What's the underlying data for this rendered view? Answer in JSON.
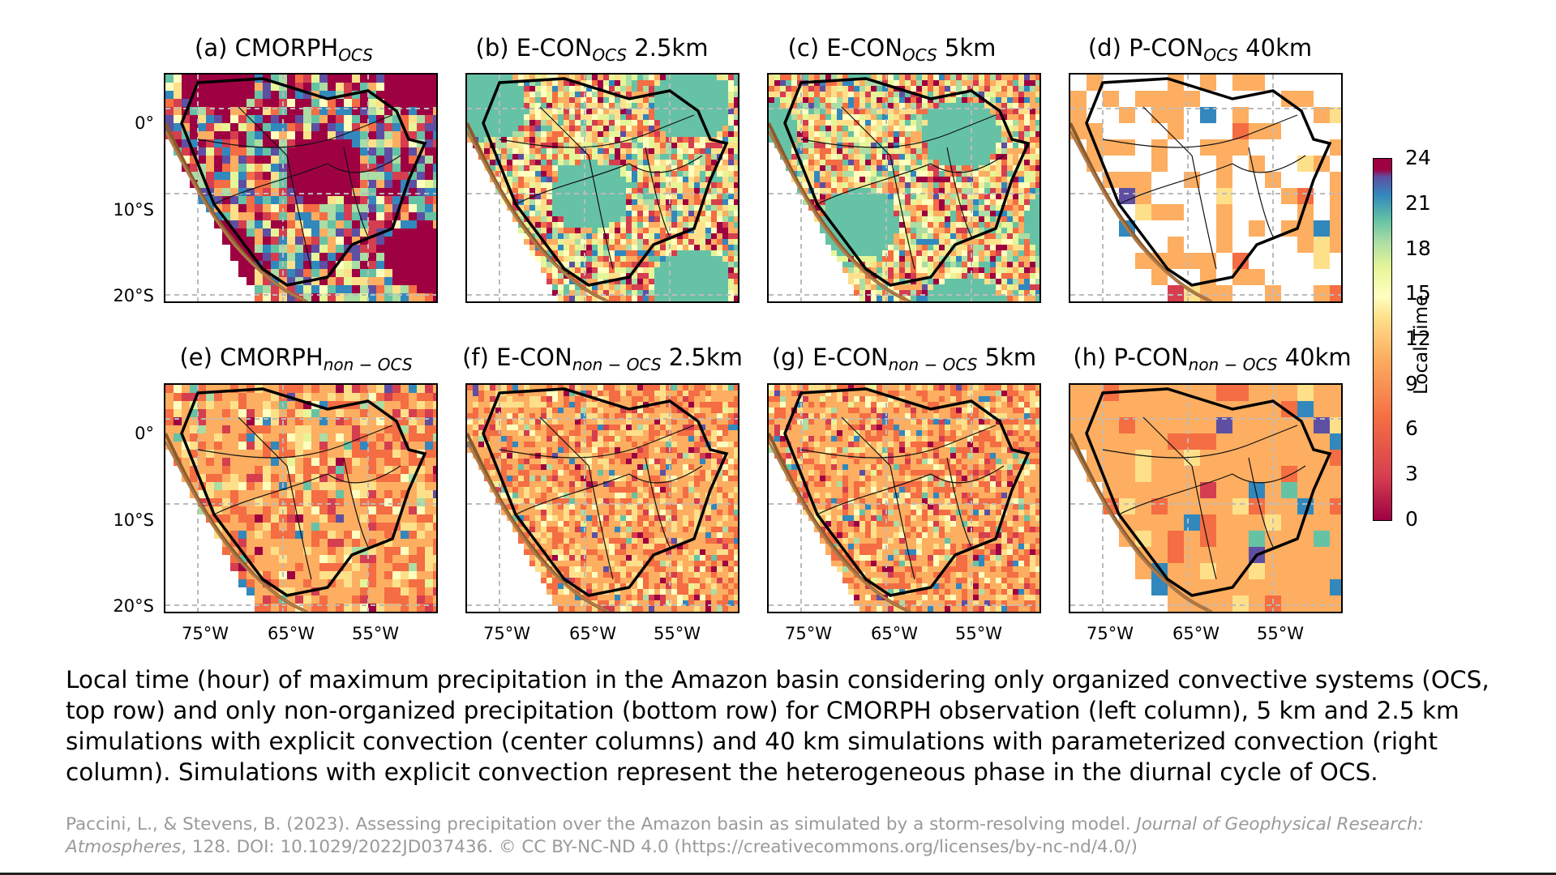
{
  "panels": [
    {
      "id": "a",
      "prefix": "(a) CMORPH",
      "sub": "OCS",
      "suffix": "",
      "scheme": "ocs-obs"
    },
    {
      "id": "b",
      "prefix": "(b) E-CON",
      "sub": "OCS",
      "suffix": " 2.5km",
      "scheme": "ocs-econ"
    },
    {
      "id": "c",
      "prefix": "(c) E-CON",
      "sub": "OCS",
      "suffix": " 5km",
      "scheme": "ocs-econ"
    },
    {
      "id": "d",
      "prefix": "(d) P-CON",
      "sub": "OCS",
      "suffix": " 40km",
      "scheme": "ocs-pcon"
    },
    {
      "id": "e",
      "prefix": "(e) CMORPH",
      "sub": "non − OCS",
      "suffix": "",
      "scheme": "non"
    },
    {
      "id": "f",
      "prefix": "(f) E-CON",
      "sub": "non − OCS",
      "suffix": " 2.5km",
      "scheme": "non"
    },
    {
      "id": "g",
      "prefix": "(g) E-CON",
      "sub": "non − OCS",
      "suffix": " 5km",
      "scheme": "non"
    },
    {
      "id": "h",
      "prefix": "(h) P-CON",
      "sub": "non − OCS",
      "suffix": " 40km",
      "scheme": "non-pcon"
    }
  ],
  "lat_labels": [
    "0°",
    "10°S",
    "20°S"
  ],
  "lon_labels": [
    "75°W",
    "65°W",
    "55°W"
  ],
  "colorbar": {
    "title": "Local Time",
    "ticks": [
      "24",
      "21",
      "18",
      "15",
      "12",
      "9",
      "6",
      "3",
      "0"
    ],
    "colors": [
      "#9e0142",
      "#d53e4f",
      "#f46d43",
      "#fdae61",
      "#fee08b",
      "#ffffbf",
      "#e6f598",
      "#abdda4",
      "#66c2a5",
      "#3288bd",
      "#5e4fa2"
    ]
  },
  "caption": "Local time (hour) of maximum precipitation in the Amazon basin considering only organized convective systems (OCS, top row) and only non-organized precipitation (bottom row) for CMORPH observation (left column), 5 km and 2.5 km simulations with explicit convection (center columns) and 40 km simulations with parameterized convection (right column). Simulations with explicit convection represent the heterogeneous phase in the diurnal cycle of OCS.",
  "credit": {
    "authors": "Paccini, L., & Stevens, B. (2023). Assessing precipitation over the Amazon basin as simulated by a storm-resolving model. ",
    "journal": "Journal of Geophysical Research: Atmospheres",
    "rest": ", 128. DOI: 10.1029/2022JD037436. © CC BY-NC-ND 4.0 (https://creativecommons.org/licenses/by-nc-nd/4.0/)"
  }
}
